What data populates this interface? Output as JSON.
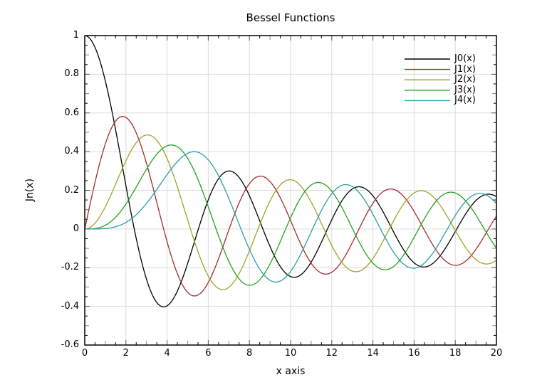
{
  "chart_data": {
    "type": "line",
    "title": "Bessel Functions",
    "xlabel": "x axis",
    "ylabel": "Jn(x)",
    "xlim": [
      0,
      20
    ],
    "ylim": [
      -0.6,
      1.0
    ],
    "xticks": [
      0,
      2,
      4,
      6,
      8,
      10,
      12,
      14,
      16,
      18,
      20
    ],
    "xtick_labels": [
      "0",
      "2",
      "4",
      "6",
      "8",
      "10",
      "12",
      "14",
      "16",
      "18",
      "20"
    ],
    "yticks": [
      -0.6,
      -0.4,
      -0.2,
      0,
      0.2,
      0.4,
      0.6,
      0.8,
      1
    ],
    "ytick_labels": [
      "-0.6",
      "-0.4",
      "-0.2",
      "0",
      "0.2",
      "0.4",
      "0.6",
      "0.8",
      "1"
    ],
    "minor_tick_divisions": 4,
    "grid": true,
    "legend_position": "top-right",
    "legend_frame": false,
    "x_sample_step": 0.05,
    "series": [
      {
        "name": "J0(x)",
        "function": "BesselJ(0,x)",
        "bessel_order": 0,
        "color": "#000000"
      },
      {
        "name": "J1(x)",
        "function": "BesselJ(1,x)",
        "bessel_order": 1,
        "color": "#a52b2e"
      },
      {
        "name": "J2(x)",
        "function": "BesselJ(2,x)",
        "bessel_order": 2,
        "color": "#a0a228"
      },
      {
        "name": "J3(x)",
        "function": "BesselJ(3,x)",
        "bessel_order": 3,
        "color": "#23a123"
      },
      {
        "name": "J4(x)",
        "function": "BesselJ(4,x)",
        "bessel_order": 4,
        "color": "#2aa0a2"
      }
    ],
    "colors": {
      "background": "#ffffff",
      "axis": "#000000",
      "grid": "#dcdcdc",
      "major_tick": "#555555",
      "mid_minor_tick": "#888888",
      "minor_tick": "#000000",
      "text": "#000000"
    }
  }
}
